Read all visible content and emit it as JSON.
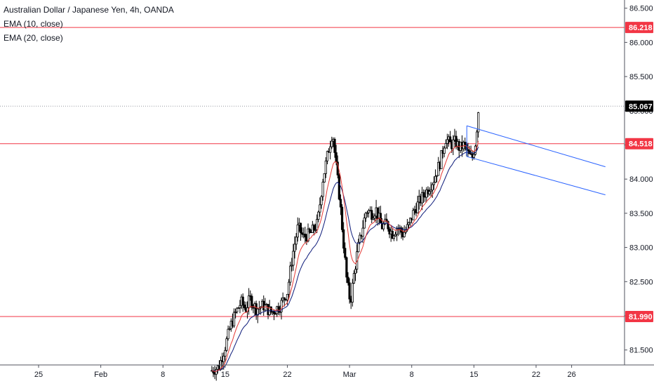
{
  "legend": {
    "symbol": "Australian Dollar / Japanese Yen, 4h, OANDA",
    "ema10": "EMA (10, close)",
    "ema20": "EMA (20, close)"
  },
  "chart_data": {
    "type": "candlestick",
    "symbol": "AUDJPY",
    "ylim": [
      81.25,
      86.6
    ],
    "yticks": [
      81.5,
      82.0,
      82.5,
      83.0,
      83.5,
      84.0,
      84.5,
      85.0,
      85.5,
      86.0,
      86.5
    ],
    "ytick_labels": [
      "81.500",
      "82.000",
      "82.500",
      "83.000",
      "83.500",
      "84.000",
      "84.500",
      "85.000",
      "85.500",
      "86.000",
      "86.500"
    ],
    "xlim": [
      0,
      890
    ],
    "xticks": [
      {
        "label": "25",
        "day": 25
      },
      {
        "label": "Feb",
        "day": 32
      },
      {
        "label": "8",
        "day": 39
      },
      {
        "label": "15",
        "day": 46
      },
      {
        "label": "22",
        "day": 53
      },
      {
        "label": "Mar",
        "day": 60
      },
      {
        "label": "8",
        "day": 67
      },
      {
        "label": "15",
        "day": 74
      },
      {
        "label": "22",
        "day": 81
      },
      {
        "label": "26",
        "day": 85
      }
    ],
    "horizontal_levels": [
      {
        "value": 86.218,
        "label": "86.218",
        "color": "#f23645"
      },
      {
        "value": 84.518,
        "label": "84.518",
        "color": "#f23645"
      },
      {
        "value": 81.99,
        "label": "81.990",
        "color": "#f23645"
      }
    ],
    "last_price": {
      "value": 85.067,
      "label": "85.067"
    },
    "channel": {
      "color": "#2962ff",
      "upper": [
        {
          "day": 73.2,
          "y": 84.78
        },
        {
          "day": 88.8,
          "y": 84.18
        }
      ],
      "lower": [
        {
          "day": 73.2,
          "y": 84.33
        },
        {
          "day": 88.8,
          "y": 83.77
        }
      ]
    },
    "ohlc_anchors": [
      [
        44.5,
        81.2
      ],
      [
        45.3,
        81.25
      ],
      [
        46.0,
        81.55
      ],
      [
        46.6,
        81.85
      ],
      [
        47.2,
        82.05
      ],
      [
        47.8,
        82.2
      ],
      [
        48.3,
        82.1
      ],
      [
        48.8,
        82.25
      ],
      [
        49.5,
        82.1
      ],
      [
        50.3,
        82.15
      ],
      [
        51.2,
        82.05
      ],
      [
        52.2,
        82.15
      ],
      [
        53.0,
        82.35
      ],
      [
        53.6,
        82.9
      ],
      [
        54.2,
        83.3
      ],
      [
        54.8,
        83.15
      ],
      [
        55.6,
        83.2
      ],
      [
        56.4,
        83.35
      ],
      [
        57.0,
        84.0
      ],
      [
        57.6,
        84.4
      ],
      [
        58.1,
        84.7
      ],
      [
        58.4,
        84.3
      ],
      [
        58.9,
        83.7
      ],
      [
        59.3,
        83.1
      ],
      [
        59.7,
        82.5
      ],
      [
        60.1,
        82.2
      ],
      [
        60.5,
        82.6
      ],
      [
        60.9,
        82.95
      ],
      [
        61.4,
        83.25
      ],
      [
        61.9,
        83.55
      ],
      [
        62.5,
        83.5
      ],
      [
        63.0,
        83.55
      ],
      [
        63.6,
        83.3
      ],
      [
        64.2,
        83.35
      ],
      [
        64.8,
        83.2
      ],
      [
        65.4,
        83.3
      ],
      [
        66.0,
        83.2
      ],
      [
        66.6,
        83.3
      ],
      [
        67.3,
        83.55
      ],
      [
        68.0,
        83.7
      ],
      [
        68.8,
        83.85
      ],
      [
        69.5,
        84.0
      ],
      [
        70.2,
        84.25
      ],
      [
        70.8,
        84.6
      ],
      [
        71.4,
        84.5
      ],
      [
        71.9,
        84.55
      ],
      [
        72.4,
        84.45
      ],
      [
        72.9,
        84.5
      ],
      [
        73.4,
        84.35
      ],
      [
        73.8,
        84.3
      ],
      [
        74.2,
        84.55
      ],
      [
        74.5,
        85.0
      ]
    ]
  }
}
